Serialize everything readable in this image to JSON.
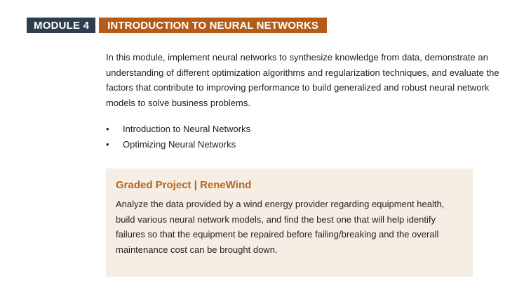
{
  "header": {
    "module_label": "MODULE 4",
    "title": "INTRODUCTION TO NEURAL NETWORKS"
  },
  "intro": {
    "text": "In this module, implement neural networks to synthesize knowledge from data, demonstrate an understanding of different optimization algorithms and regularization techniques, and evaluate the factors that contribute to improving performance to build generalized and robust neural network models to solve business problems."
  },
  "topics": [
    {
      "bullet": "•",
      "label": "Introduction to Neural Networks"
    },
    {
      "bullet": "•",
      "label": "Optimizing Neural Networks"
    }
  ],
  "project": {
    "title": "Graded Project | ReneWind",
    "description": "Analyze the data provided by a wind energy provider regarding equipment health, build various neural network models, and find the best one that will help identify failures so that the equipment be repaired before failing/breaking and the overall maintenance cost can be brought down."
  },
  "colors": {
    "module_tag_bg": "#2f3e4e",
    "module_title_bg": "#b65b15",
    "project_box_bg": "#f6ede4",
    "project_title": "#b5651d"
  }
}
